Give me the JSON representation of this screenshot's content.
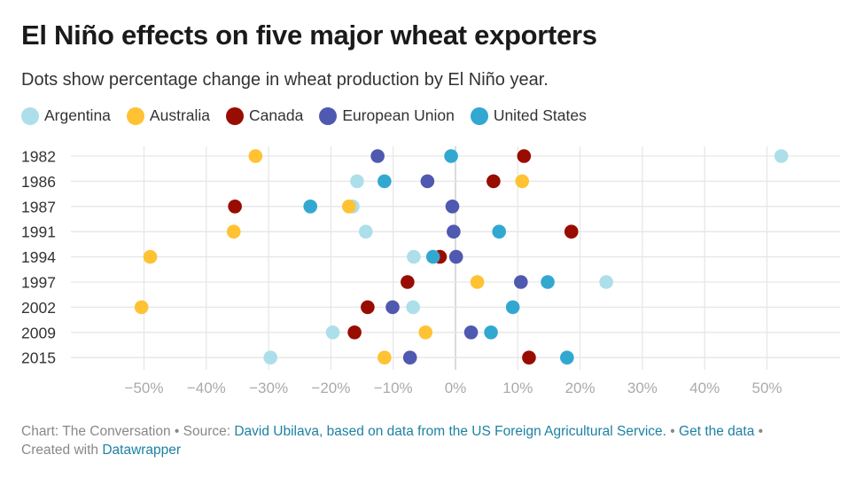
{
  "header": {
    "title": "El Niño effects on five major wheat exporters",
    "subtitle": "Dots show percentage change in wheat production by El Niño year."
  },
  "chart_data": {
    "type": "scatter",
    "title": "El Niño effects on five major wheat exporters",
    "subtitle": "Dots show percentage change in wheat production by El Niño year.",
    "xlabel": "",
    "ylabel": "",
    "x_range": [
      -62,
      62
    ],
    "x_ticks": [
      -50,
      -40,
      -30,
      -20,
      -10,
      0,
      10,
      20,
      30,
      40,
      50
    ],
    "x_tick_labels": [
      "−50%",
      "−40%",
      "−30%",
      "−20%",
      "−10%",
      "0%",
      "10%",
      "20%",
      "30%",
      "40%",
      "50%"
    ],
    "grid": true,
    "legend_position": "top-left",
    "categories": [
      "1982",
      "1986",
      "1987",
      "1991",
      "1994",
      "1997",
      "2002",
      "2009",
      "2015"
    ],
    "series": [
      {
        "name": "Argentina",
        "color": "#addfea",
        "values": [
          52.3,
          -15.8,
          -16.5,
          -14.4,
          -6.7,
          24.2,
          -6.8,
          -19.7,
          -29.7
        ]
      },
      {
        "name": "Australia",
        "color": "#ffc233",
        "values": [
          -32.1,
          10.7,
          -17.1,
          -35.6,
          -49.0,
          3.5,
          -50.4,
          -4.8,
          -11.4
        ]
      },
      {
        "name": "Canada",
        "color": "#990c00",
        "values": [
          11.0,
          6.1,
          -35.4,
          18.6,
          -2.5,
          -7.7,
          -14.1,
          -16.2,
          11.8
        ]
      },
      {
        "name": "European Union",
        "color": "#5059b0",
        "values": [
          -12.5,
          -4.5,
          -0.5,
          -0.3,
          0.1,
          10.5,
          -10.1,
          2.5,
          -7.3
        ]
      },
      {
        "name": "United States",
        "color": "#32a8d1",
        "values": [
          -0.7,
          -11.4,
          -23.3,
          7.0,
          -3.6,
          14.8,
          9.2,
          5.7,
          17.9
        ]
      }
    ]
  },
  "footer": {
    "chart_prefix": "Chart: The Conversation • Source: ",
    "source_link": "David Ubilava, based on data from the US Foreign Agricultural Service.",
    "separator1": " • ",
    "get_data_link": "Get the data",
    "separator2": " •",
    "created_prefix": "Created with ",
    "datawrapper_link": "Datawrapper"
  }
}
